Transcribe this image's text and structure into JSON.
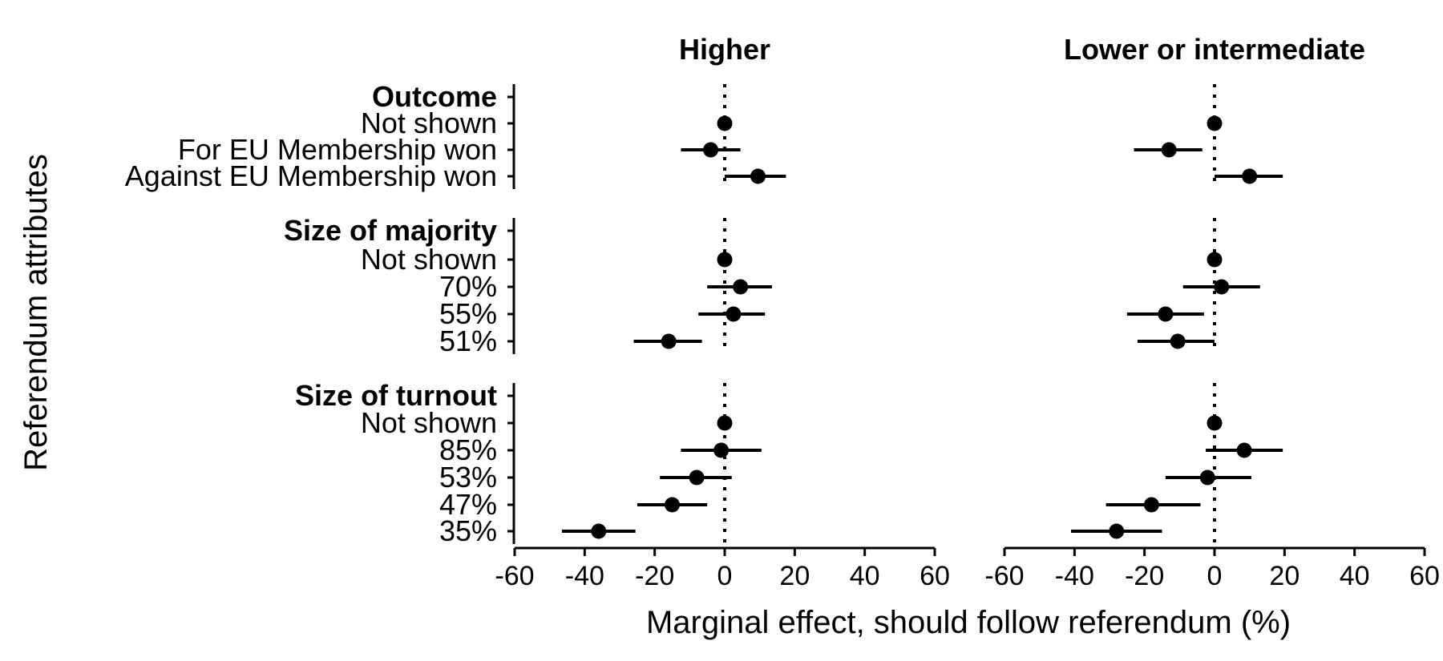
{
  "chart_data": {
    "type": "scatter",
    "subtype": "dot-and-whisker",
    "xlabel": "Marginal effect, should follow referendum (%)",
    "ylabel": "Referendum attributes",
    "xlim": [
      -60,
      60
    ],
    "xticks": [
      -60,
      -40,
      -20,
      0,
      20,
      40,
      60
    ],
    "xtick_labels": [
      "-60",
      "-40",
      "-20",
      "0",
      "20",
      "40",
      "60"
    ],
    "reference_line": 0,
    "grid": false,
    "legend": "none",
    "rows": [
      {
        "label": "Outcome",
        "header": true
      },
      {
        "label": "Not shown"
      },
      {
        "label": "For EU Membership won"
      },
      {
        "label": "Against EU Membership won"
      },
      {
        "label": "Size of majority",
        "header": true
      },
      {
        "label": "Not shown"
      },
      {
        "label": "70%"
      },
      {
        "label": "55%"
      },
      {
        "label": "51%"
      },
      {
        "label": "Size of turnout",
        "header": true
      },
      {
        "label": "Not shown"
      },
      {
        "label": "85%"
      },
      {
        "label": "53%"
      },
      {
        "label": "47%"
      },
      {
        "label": "35%"
      }
    ],
    "panels": [
      {
        "title": "Higher",
        "estimates": [
          null,
          0,
          -4,
          9.5,
          null,
          0,
          4.5,
          2.5,
          -16,
          null,
          0,
          -1,
          -8,
          -15,
          -36
        ],
        "lower": [
          null,
          0,
          -12.5,
          0,
          null,
          0,
          -5,
          -7.5,
          -26,
          null,
          0,
          -12.5,
          -18.5,
          -25,
          -46.5
        ],
        "upper": [
          null,
          0,
          4.5,
          17.5,
          null,
          0,
          13.5,
          11.5,
          -6.5,
          null,
          0,
          10.5,
          2,
          -5,
          -25.5
        ]
      },
      {
        "title": "Lower or intermediate",
        "estimates": [
          null,
          0,
          -13,
          10,
          null,
          0,
          2,
          -14,
          -10.5,
          null,
          0,
          8.5,
          -2,
          -18,
          -28
        ],
        "lower": [
          null,
          0,
          -23,
          0,
          null,
          0,
          -9,
          -25,
          -22,
          null,
          0,
          -2.5,
          -14,
          -31,
          -41
        ],
        "upper": [
          null,
          0,
          -3.5,
          19.5,
          null,
          0,
          13,
          -3,
          0,
          null,
          0,
          19.5,
          10.5,
          -4,
          -15
        ]
      }
    ]
  }
}
